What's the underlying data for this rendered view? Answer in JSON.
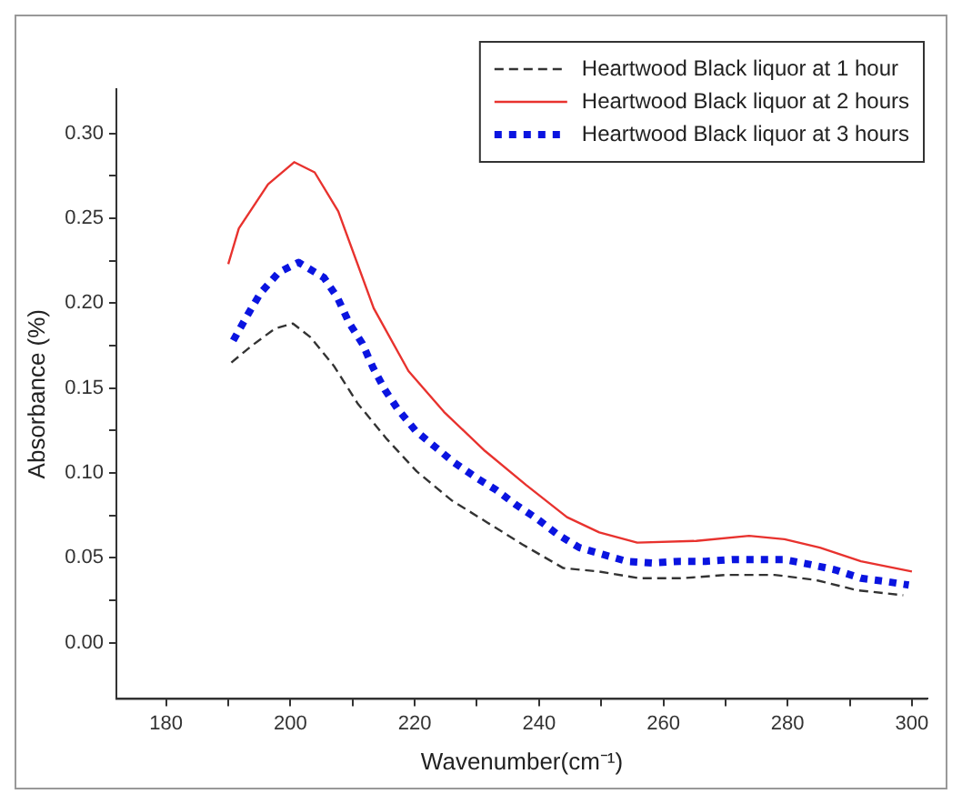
{
  "chart_data": {
    "type": "line",
    "xlabel": "Wavenumber(cm⁻¹)",
    "ylabel": "Absorbance (%)",
    "xlim": [
      172,
      302.5
    ],
    "ylim": [
      -0.033,
      0.326
    ],
    "xticks": [
      180,
      {
        "value": 190,
        "label": null
      },
      200,
      {
        "value": 210,
        "label": null
      },
      220,
      {
        "value": 230,
        "label": null
      },
      240,
      {
        "value": 250,
        "label": null
      },
      260,
      {
        "value": 270,
        "label": null
      },
      280,
      {
        "value": 290,
        "label": null
      },
      300
    ],
    "yticks": [
      {
        "value": 0,
        "label": "0.00"
      },
      {
        "value": 0.025,
        "label": null
      },
      {
        "value": 0.05,
        "label": "0.05"
      },
      {
        "value": 0.075,
        "label": null
      },
      {
        "value": 0.1,
        "label": "0.10"
      },
      {
        "value": 0.125,
        "label": null
      },
      {
        "value": 0.15,
        "label": "0.15"
      },
      {
        "value": 0.175,
        "label": null
      },
      {
        "value": 0.2,
        "label": "0.20"
      },
      {
        "value": 0.225,
        "label": null
      },
      {
        "value": 0.25,
        "label": "0.25"
      },
      {
        "value": 0.275,
        "label": null
      },
      {
        "value": 0.3,
        "label": "0.30"
      }
    ],
    "grid": false,
    "legend": "top right",
    "marker": "none",
    "series": [
      {
        "name": "Heartwood Black liquor at 1 hour",
        "color": "#333333",
        "line_style": "dashed",
        "x": [
          190.5,
          193.8,
          197.5,
          200.4,
          203.2,
          207,
          210.8,
          215.5,
          220.3,
          225.9,
          231.6,
          237.3,
          243.9,
          249.6,
          256.2,
          262.8,
          270.3,
          277.9,
          284.5,
          291.1,
          298.6
        ],
        "values": [
          0.165,
          0.175,
          0.185,
          0.188,
          0.18,
          0.163,
          0.141,
          0.12,
          0.101,
          0.084,
          0.071,
          0.058,
          0.044,
          0.042,
          0.038,
          0.038,
          0.04,
          0.04,
          0.037,
          0.031,
          0.028
        ]
      },
      {
        "name": "Heartwood Black liquor at 2 hours",
        "color": "#e8322e",
        "line_style": "solid",
        "x": [
          190,
          191.7,
          196.4,
          200.6,
          203.9,
          207.7,
          213.4,
          219,
          224.7,
          231.3,
          237.9,
          244.5,
          249.7,
          255.8,
          265.3,
          273.8,
          279.5,
          285.2,
          291.8,
          300
        ],
        "values": [
          0.223,
          0.244,
          0.27,
          0.283,
          0.277,
          0.254,
          0.197,
          0.16,
          0.136,
          0.113,
          0.093,
          0.074,
          0.065,
          0.059,
          0.06,
          0.063,
          0.061,
          0.056,
          0.048,
          0.042
        ]
      },
      {
        "name": "Heartwood Black liquor at 3 hours",
        "color": "#0a14e0",
        "line_style": "dotted",
        "x": [
          190.8,
          193.1,
          195.2,
          198.1,
          201.3,
          205.4,
          207.6,
          209.5,
          211.6,
          213.3,
          215.2,
          217.2,
          220.1,
          223.4,
          226.4,
          230,
          233.1,
          236.4,
          239.7,
          242.9,
          246.5,
          250.3,
          254.1,
          258.3,
          262.6,
          266.8,
          271.1,
          275.3,
          279.5,
          283.8,
          287.6,
          291.8,
          296,
          299.5
        ],
        "values": [
          0.178,
          0.193,
          0.206,
          0.218,
          0.224,
          0.215,
          0.203,
          0.188,
          0.176,
          0.162,
          0.149,
          0.138,
          0.125,
          0.115,
          0.106,
          0.097,
          0.09,
          0.081,
          0.073,
          0.064,
          0.056,
          0.052,
          0.048,
          0.047,
          0.048,
          0.048,
          0.049,
          0.049,
          0.049,
          0.046,
          0.043,
          0.038,
          0.036,
          0.034
        ]
      }
    ]
  }
}
